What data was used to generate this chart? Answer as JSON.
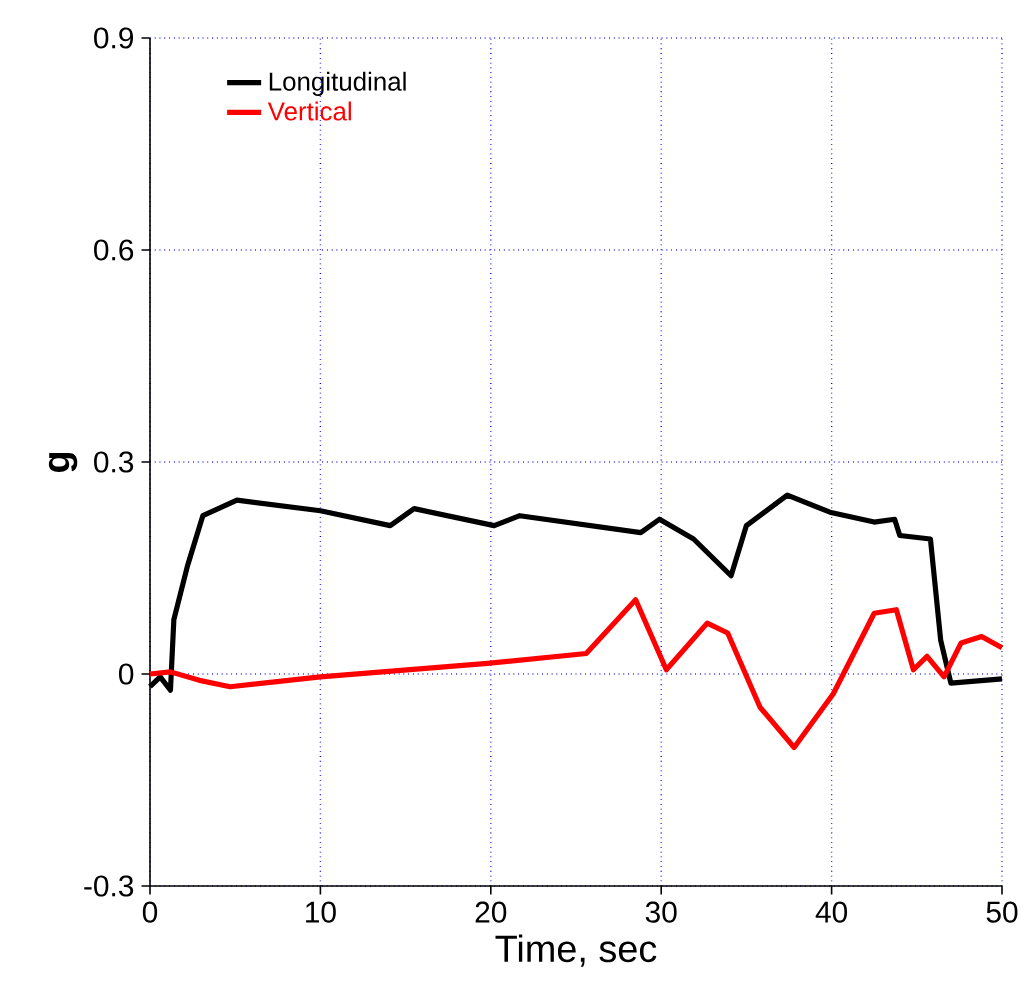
{
  "chart_data": {
    "type": "line",
    "xlabel": "Time, sec",
    "ylabel": "**g**",
    "xlim": [
      0,
      50
    ],
    "ylim": [
      -0.3,
      0.9
    ],
    "xticks": [
      0,
      10,
      20,
      30,
      40,
      50
    ],
    "yticks": [
      -0.3,
      0,
      0.3,
      0.6,
      0.9
    ],
    "grid": true,
    "legend": "top left",
    "series": [
      {
        "name": "Longitudinal",
        "color": "#000000",
        "x": [
          0,
          0.6,
          1.2,
          1.4,
          2.2,
          3.1,
          5.1,
          10,
          14.1,
          15.5,
          20.2,
          21.7,
          28.8,
          29.9,
          31.9,
          34.1,
          35,
          37.4,
          39.9,
          42.5,
          43.7,
          44,
          45.8,
          46.4,
          47,
          50
        ],
        "values": [
          -0.018,
          -0.004,
          -0.023,
          0.077,
          0.153,
          0.224,
          0.246,
          0.231,
          0.21,
          0.234,
          0.21,
          0.224,
          0.2,
          0.219,
          0.191,
          0.139,
          0.21,
          0.253,
          0.229,
          0.215,
          0.219,
          0.196,
          0.191,
          0.048,
          -0.013,
          -0.007
        ]
      },
      {
        "name": "Vertical",
        "color": "#ff0000",
        "x": [
          0,
          1.2,
          2.9,
          4.7,
          10,
          19.8,
          25.6,
          28.5,
          30.3,
          32.7,
          33.9,
          35.8,
          37.8,
          40.1,
          42.5,
          43.8,
          44.8,
          45.6,
          46.6,
          47.6,
          48.8,
          50
        ],
        "values": [
          0,
          0.003,
          -0.009,
          -0.018,
          -0.004,
          0.015,
          0.029,
          0.105,
          0.006,
          0.072,
          0.058,
          -0.047,
          -0.104,
          -0.028,
          0.086,
          0.091,
          0.006,
          0.025,
          -0.004,
          0.044,
          0.053,
          0.037
        ]
      }
    ]
  }
}
